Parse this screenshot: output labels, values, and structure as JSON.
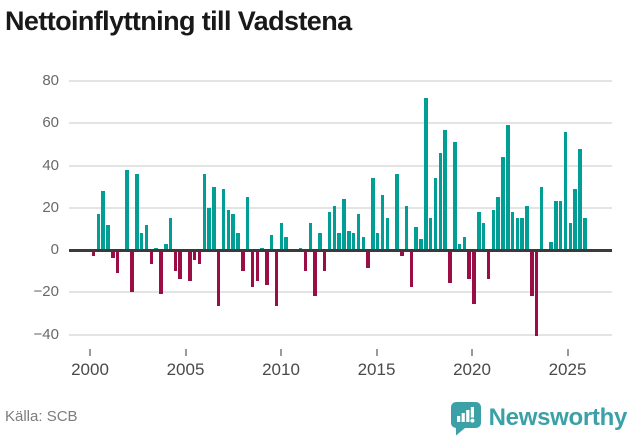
{
  "title": "Nettoinflyttning till Vadstena",
  "footer": {
    "source": "Källa: SCB",
    "brand": "Newsworthy"
  },
  "colors": {
    "positive": "#009e94",
    "negative": "#9b0e45",
    "brand_teal": "#3ba1a6",
    "grid": "#e4e4e4",
    "zero_axis": "#3a3a3a"
  },
  "chart_data": {
    "type": "bar",
    "title": "Nettoinflyttning till Vadstena",
    "frequency": "quarterly",
    "start_period": "2000 Q1",
    "end_period": "2025 Q3",
    "x_tick_labels": [
      "2000",
      "2005",
      "2010",
      "2015",
      "2020",
      "2025"
    ],
    "y_ticks": [
      80,
      60,
      40,
      20,
      0,
      -20,
      -40
    ],
    "y_tick_labels": [
      "80",
      "60",
      "40",
      "20",
      "0",
      "−20",
      "−40"
    ],
    "ylim": [
      -45,
      85
    ],
    "grid": true,
    "legend": false,
    "values_by_year": [
      {
        "year": 2000,
        "q": [
          -2,
          17,
          28,
          12
        ]
      },
      {
        "year": 2001,
        "q": [
          -3,
          -10,
          0,
          38
        ]
      },
      {
        "year": 2002,
        "q": [
          -19,
          36,
          8,
          12
        ]
      },
      {
        "year": 2003,
        "q": [
          -6,
          1,
          -20,
          3
        ]
      },
      {
        "year": 2004,
        "q": [
          15,
          -9,
          -13,
          0
        ]
      },
      {
        "year": 2005,
        "q": [
          -14,
          -4,
          -6,
          36
        ]
      },
      {
        "year": 2006,
        "q": [
          20,
          30,
          -26,
          29
        ]
      },
      {
        "year": 2007,
        "q": [
          19,
          17,
          8,
          -9
        ]
      },
      {
        "year": 2008,
        "q": [
          25,
          -17,
          -14,
          1
        ]
      },
      {
        "year": 2009,
        "q": [
          -16,
          7,
          -26,
          13
        ]
      },
      {
        "year": 2010,
        "q": [
          6,
          0,
          0,
          1
        ]
      },
      {
        "year": 2011,
        "q": [
          -9,
          13,
          -21,
          8
        ]
      },
      {
        "year": 2012,
        "q": [
          -9,
          18,
          21,
          8
        ]
      },
      {
        "year": 2013,
        "q": [
          24,
          9,
          8,
          17
        ]
      },
      {
        "year": 2014,
        "q": [
          6,
          -8,
          34,
          8
        ]
      },
      {
        "year": 2015,
        "q": [
          26,
          15,
          0,
          36
        ]
      },
      {
        "year": 2016,
        "q": [
          -2,
          21,
          -17,
          11
        ]
      },
      {
        "year": 2017,
        "q": [
          5,
          72,
          15,
          34
        ]
      },
      {
        "year": 2018,
        "q": [
          46,
          57,
          -15,
          51
        ]
      },
      {
        "year": 2019,
        "q": [
          3,
          6,
          -13,
          -25
        ]
      },
      {
        "year": 2020,
        "q": [
          18,
          13,
          -13,
          19
        ]
      },
      {
        "year": 2021,
        "q": [
          25,
          44,
          59,
          18
        ]
      },
      {
        "year": 2022,
        "q": [
          15,
          15,
          21,
          -21
        ]
      },
      {
        "year": 2023,
        "q": [
          -40,
          30,
          0,
          4
        ]
      },
      {
        "year": 2024,
        "q": [
          23,
          23,
          56,
          13
        ]
      },
      {
        "year": 2025,
        "q": [
          29,
          48,
          15
        ]
      }
    ]
  }
}
